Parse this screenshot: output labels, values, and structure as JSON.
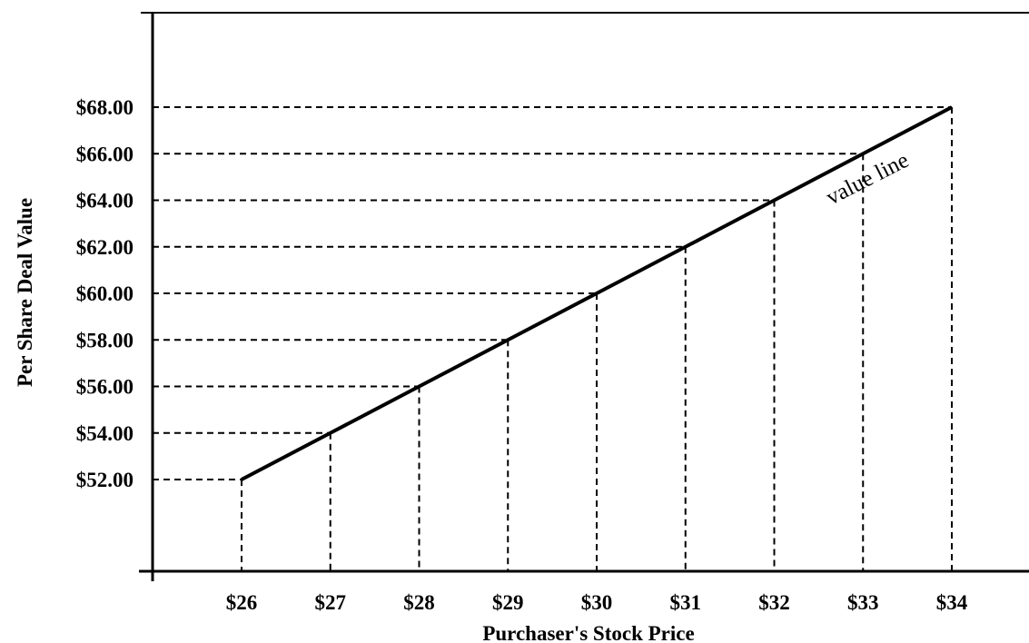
{
  "chart_data": {
    "type": "line",
    "title": "",
    "xlabel": "Purchaser's Stock Price",
    "ylabel": "Per Share Deal Value",
    "x_tick_labels": [
      "$26",
      "$27",
      "$28",
      "$29",
      "$30",
      "$31",
      "$32",
      "$33",
      "$34"
    ],
    "y_tick_labels": [
      "$52.00",
      "$54.00",
      "$56.00",
      "$58.00",
      "$60.00",
      "$62.00",
      "$64.00",
      "$66.00",
      "$68.00"
    ],
    "x": [
      26,
      27,
      28,
      29,
      30,
      31,
      32,
      33,
      34
    ],
    "series": [
      {
        "name": "",
        "values": [
          52,
          54,
          56,
          58,
          60,
          62,
          64,
          66,
          68
        ]
      }
    ],
    "annotation": "value line",
    "guides": "dashed",
    "legend": "none",
    "grid": false
  }
}
